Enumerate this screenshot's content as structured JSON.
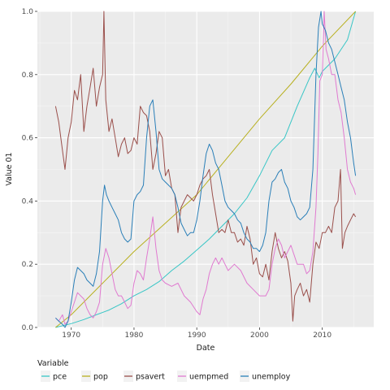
{
  "chart_data": {
    "type": "line",
    "xlabel": "Date",
    "ylabel": "Value 01",
    "xlim": [
      1964.6,
      2018.2
    ],
    "ylim": [
      0,
      1
    ],
    "xticks": [
      1970,
      1980,
      1990,
      2000,
      2010
    ],
    "yticks": [
      0.0,
      0.2,
      0.4,
      0.6,
      0.8,
      1.0
    ],
    "ytick_labels": [
      "0.0",
      "0.2",
      "0.4",
      "0.6",
      "0.8",
      "1.0"
    ],
    "grid": true,
    "background": "#ebebeb",
    "legend": {
      "title": "Variable",
      "position": "bottom"
    },
    "series": [
      {
        "name": "pce",
        "color": "#38c6c6",
        "x": [
          1967.5,
          1970,
          1972,
          1974,
          1976,
          1978,
          1980,
          1982,
          1984,
          1986,
          1988,
          1990,
          1992,
          1994,
          1996,
          1998,
          2000,
          2002,
          2004,
          2006,
          2008,
          2008.8,
          2009.5,
          2010,
          2012,
          2014,
          2015.3
        ],
        "values": [
          0.0,
          0.012,
          0.025,
          0.04,
          0.055,
          0.075,
          0.1,
          0.12,
          0.145,
          0.18,
          0.21,
          0.245,
          0.28,
          0.32,
          0.36,
          0.41,
          0.48,
          0.56,
          0.6,
          0.7,
          0.79,
          0.82,
          0.79,
          0.81,
          0.85,
          0.91,
          1.0
        ]
      },
      {
        "name": "pop",
        "color": "#b8b020",
        "x": [
          1967.5,
          1970,
          1975,
          1980,
          1985,
          1990,
          1995,
          2000,
          2005,
          2010,
          2015.3
        ],
        "values": [
          0.0,
          0.04,
          0.14,
          0.24,
          0.33,
          0.42,
          0.54,
          0.66,
          0.77,
          0.89,
          1.0
        ]
      },
      {
        "name": "psavert",
        "color": "#9a4f4b",
        "x": [
          1967.5,
          1968,
          1968.6,
          1969,
          1969.5,
          1970,
          1970.5,
          1971,
          1971.5,
          1972,
          1972.5,
          1973,
          1973.5,
          1974,
          1974.5,
          1975,
          1975.2,
          1975.5,
          1976,
          1976.5,
          1977,
          1977.5,
          1978,
          1978.5,
          1979,
          1979.5,
          1980,
          1980.5,
          1981,
          1981.5,
          1982,
          1982.5,
          1983,
          1983.5,
          1984,
          1984.5,
          1985,
          1985.5,
          1986,
          1986.5,
          1987,
          1987.5,
          1988,
          1988.5,
          1989,
          1989.5,
          1990,
          1990.5,
          1991,
          1991.5,
          1992,
          1992.5,
          1993,
          1993.5,
          1994,
          1994.5,
          1995,
          1995.5,
          1996,
          1996.5,
          1997,
          1997.5,
          1998,
          1998.5,
          1999,
          1999.5,
          2000,
          2000.5,
          2001,
          2001.5,
          2002,
          2002.5,
          2003,
          2003.5,
          2004,
          2004.5,
          2005,
          2005.3,
          2005.6,
          2006,
          2006.5,
          2007,
          2007.5,
          2008,
          2008.5,
          2009,
          2009.5,
          2010,
          2010.5,
          2011,
          2011.5,
          2012,
          2012.5,
          2012.9,
          2013.2,
          2013.6,
          2014,
          2014.5,
          2015,
          2015.3
        ],
        "values": [
          0.7,
          0.65,
          0.56,
          0.5,
          0.6,
          0.65,
          0.75,
          0.72,
          0.8,
          0.62,
          0.7,
          0.76,
          0.82,
          0.7,
          0.76,
          0.8,
          1.0,
          0.72,
          0.62,
          0.66,
          0.6,
          0.54,
          0.58,
          0.6,
          0.55,
          0.56,
          0.6,
          0.58,
          0.7,
          0.68,
          0.67,
          0.62,
          0.5,
          0.55,
          0.62,
          0.6,
          0.48,
          0.5,
          0.44,
          0.42,
          0.3,
          0.38,
          0.4,
          0.42,
          0.41,
          0.4,
          0.42,
          0.45,
          0.47,
          0.48,
          0.5,
          0.42,
          0.36,
          0.3,
          0.31,
          0.3,
          0.34,
          0.3,
          0.3,
          0.27,
          0.28,
          0.26,
          0.32,
          0.28,
          0.2,
          0.22,
          0.17,
          0.16,
          0.2,
          0.15,
          0.24,
          0.3,
          0.25,
          0.22,
          0.24,
          0.21,
          0.14,
          0.02,
          0.1,
          0.12,
          0.14,
          0.1,
          0.12,
          0.08,
          0.2,
          0.27,
          0.25,
          0.3,
          0.3,
          0.32,
          0.3,
          0.38,
          0.4,
          0.5,
          0.25,
          0.3,
          0.32,
          0.34,
          0.36,
          0.35
        ]
      },
      {
        "name": "uempmed",
        "color": "#e07ad0",
        "x": [
          1967.5,
          1968,
          1968.6,
          1969,
          1969.5,
          1970,
          1970.5,
          1971,
          1971.5,
          1972,
          1972.5,
          1973,
          1973.5,
          1974,
          1974.5,
          1975,
          1975.5,
          1976,
          1976.5,
          1977,
          1977.5,
          1978,
          1978.5,
          1979,
          1979.5,
          1980,
          1980.5,
          1981,
          1981.5,
          1982,
          1982.5,
          1983,
          1983.5,
          1984,
          1984.5,
          1985,
          1986,
          1987,
          1988,
          1989,
          1990,
          1990.5,
          1991,
          1991.5,
          1992,
          1992.5,
          1993,
          1993.5,
          1994,
          1994.5,
          1995,
          1996,
          1997,
          1998,
          1999,
          2000,
          2001,
          2001.5,
          2002,
          2002.5,
          2003,
          2003.5,
          2004,
          2005,
          2006,
          2007,
          2007.5,
          2008,
          2008.5,
          2009,
          2009.3,
          2009.6,
          2010,
          2010.3,
          2010.6,
          2011,
          2011.5,
          2012,
          2012.5,
          2013,
          2013.5,
          2014,
          2014.5,
          2015,
          2015.3
        ],
        "values": [
          0.03,
          0.02,
          0.04,
          0.01,
          0.02,
          0.05,
          0.08,
          0.11,
          0.1,
          0.09,
          0.06,
          0.04,
          0.03,
          0.05,
          0.08,
          0.2,
          0.25,
          0.22,
          0.17,
          0.12,
          0.1,
          0.1,
          0.08,
          0.06,
          0.07,
          0.14,
          0.18,
          0.17,
          0.15,
          0.22,
          0.28,
          0.35,
          0.25,
          0.18,
          0.15,
          0.14,
          0.13,
          0.14,
          0.1,
          0.08,
          0.05,
          0.04,
          0.09,
          0.12,
          0.17,
          0.2,
          0.22,
          0.2,
          0.22,
          0.2,
          0.18,
          0.2,
          0.18,
          0.14,
          0.12,
          0.1,
          0.1,
          0.12,
          0.2,
          0.25,
          0.28,
          0.26,
          0.22,
          0.26,
          0.2,
          0.2,
          0.17,
          0.18,
          0.24,
          0.38,
          0.55,
          0.78,
          0.8,
          1.0,
          0.88,
          0.85,
          0.8,
          0.8,
          0.72,
          0.68,
          0.6,
          0.5,
          0.46,
          0.44,
          0.42
        ]
      },
      {
        "name": "unemploy",
        "color": "#2a7fb8",
        "x": [
          1967.5,
          1968,
          1968.6,
          1969,
          1969.5,
          1970,
          1970.5,
          1971,
          1971.5,
          1972,
          1972.5,
          1973,
          1973.5,
          1974,
          1974.5,
          1975,
          1975.3,
          1975.6,
          1976,
          1976.5,
          1977,
          1977.5,
          1978,
          1978.5,
          1979,
          1979.5,
          1980,
          1980.5,
          1981,
          1981.5,
          1982,
          1982.5,
          1983,
          1983.5,
          1984,
          1984.5,
          1985,
          1985.5,
          1986,
          1986.5,
          1987,
          1987.5,
          1988,
          1988.5,
          1989,
          1989.5,
          1990,
          1990.5,
          1991,
          1991.5,
          1992,
          1992.5,
          1993,
          1993.5,
          1994,
          1994.5,
          1995,
          1995.5,
          1996,
          1996.5,
          1997,
          1997.5,
          1998,
          1998.5,
          1999,
          1999.5,
          2000,
          2000.5,
          2001,
          2001.5,
          2002,
          2002.5,
          2003,
          2003.5,
          2004,
          2004.5,
          2005,
          2005.5,
          2006,
          2006.5,
          2007,
          2007.5,
          2008,
          2008.5,
          2009,
          2009.4,
          2009.8,
          2010,
          2010.5,
          2011,
          2011.5,
          2012,
          2012.5,
          2013,
          2013.5,
          2014,
          2014.5,
          2015,
          2015.3
        ],
        "values": [
          0.03,
          0.02,
          0.01,
          0.0,
          0.02,
          0.08,
          0.15,
          0.19,
          0.18,
          0.17,
          0.15,
          0.14,
          0.13,
          0.17,
          0.24,
          0.4,
          0.45,
          0.42,
          0.4,
          0.38,
          0.36,
          0.34,
          0.3,
          0.28,
          0.27,
          0.28,
          0.4,
          0.42,
          0.43,
          0.45,
          0.6,
          0.7,
          0.72,
          0.62,
          0.5,
          0.47,
          0.46,
          0.45,
          0.44,
          0.42,
          0.38,
          0.33,
          0.31,
          0.29,
          0.3,
          0.3,
          0.34,
          0.4,
          0.48,
          0.55,
          0.58,
          0.56,
          0.52,
          0.5,
          0.45,
          0.4,
          0.38,
          0.37,
          0.36,
          0.34,
          0.33,
          0.3,
          0.28,
          0.27,
          0.25,
          0.25,
          0.24,
          0.26,
          0.3,
          0.4,
          0.46,
          0.47,
          0.49,
          0.5,
          0.46,
          0.44,
          0.4,
          0.38,
          0.35,
          0.34,
          0.35,
          0.36,
          0.38,
          0.5,
          0.8,
          0.95,
          1.0,
          0.96,
          0.94,
          0.9,
          0.88,
          0.84,
          0.8,
          0.76,
          0.72,
          0.65,
          0.6,
          0.52,
          0.48
        ]
      }
    ]
  }
}
